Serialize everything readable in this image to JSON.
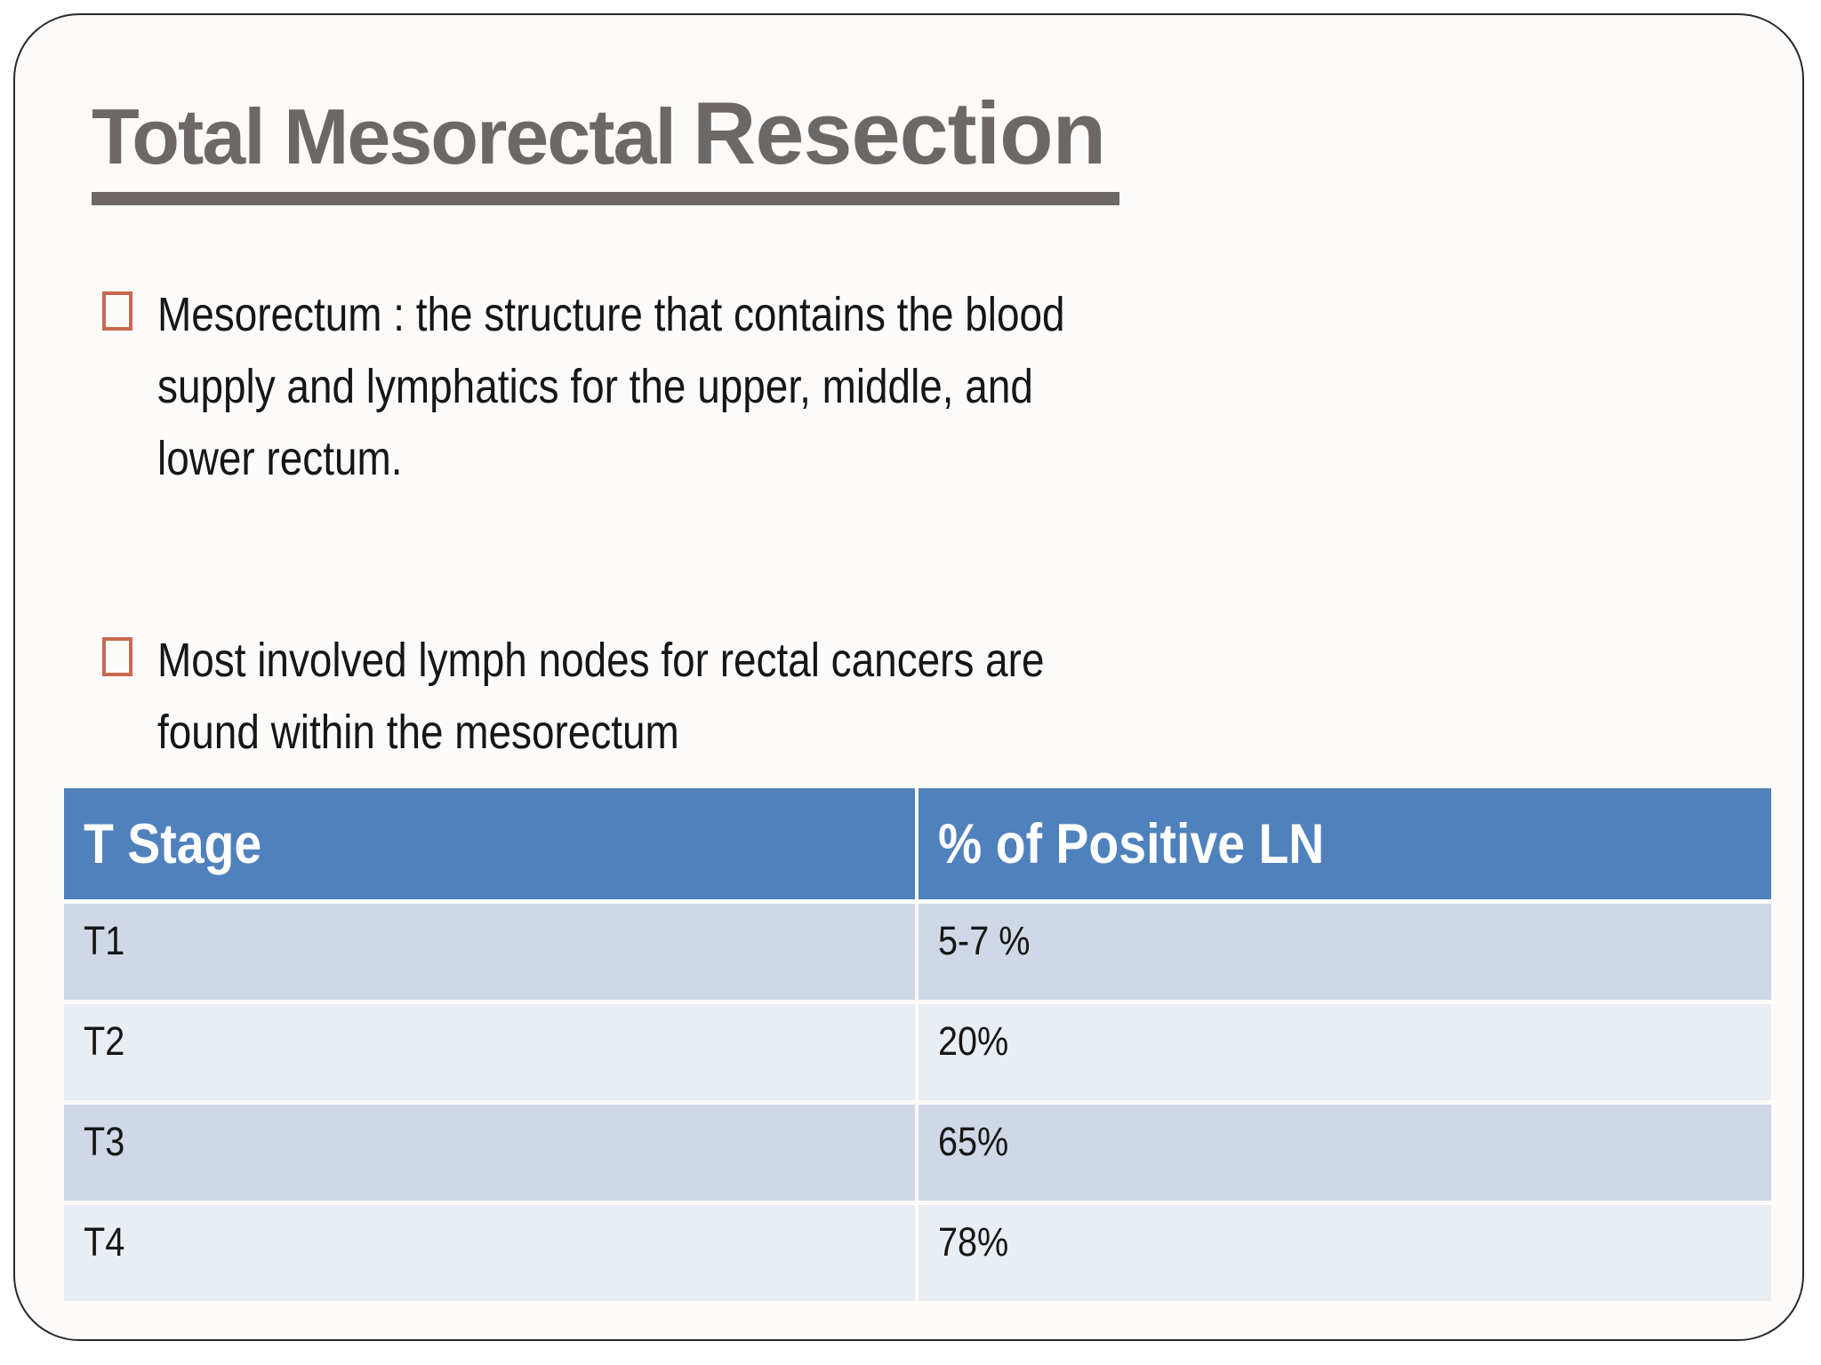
{
  "slide": {
    "title": {
      "part1": "Total Mesorectal",
      "part2": "Resection"
    },
    "bullets": [
      {
        "text": "Mesorectum :  the structure that contains the blood\nsupply and lymphatics for the  upper, middle, and\nlower rectum."
      },
      {
        "text": "Most involved lymph nodes for rectal cancers are\nfound within the mesorectum"
      }
    ],
    "table": {
      "headers": [
        "T Stage",
        "% of Positive LN"
      ],
      "rows": [
        [
          "T1",
          "5-7 %"
        ],
        [
          "T2",
          "20%"
        ],
        [
          "T3",
          "65%"
        ],
        [
          "T4",
          "78%"
        ]
      ]
    },
    "colors": {
      "title_gray": "#6d6866",
      "bullet_orange": "#c8694f",
      "header_blue": "#4f81bd",
      "band_dark": "#d0d8e8",
      "band_light": "#e9edf4",
      "frame_border": "#2a282a"
    }
  }
}
